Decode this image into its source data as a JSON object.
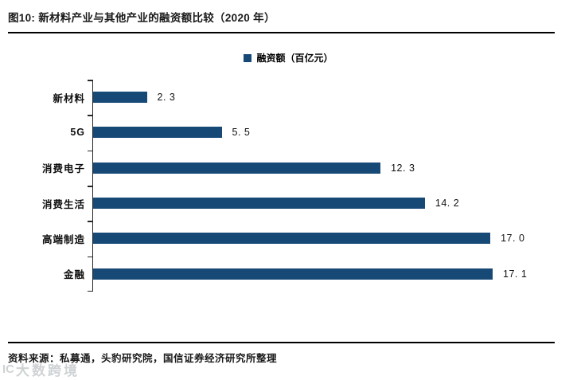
{
  "header": {
    "title": "图10: 新材料产业与其他产业的融资额比较（2020 年）"
  },
  "chart_data": {
    "type": "bar",
    "orientation": "horizontal",
    "legend": [
      "融资额（百亿元）"
    ],
    "legend_position": "top-center",
    "categories": [
      "新材料",
      "5G",
      "消费电子",
      "消费生活",
      "高端制造",
      "金融"
    ],
    "values": [
      2.3,
      5.5,
      12.3,
      14.2,
      17.0,
      17.1
    ],
    "value_labels": [
      "2. 3",
      "5. 5",
      "12. 3",
      "14. 2",
      "17. 0",
      "17. 1"
    ],
    "xlim": [
      0,
      17.1
    ],
    "grid": false,
    "bar_color": "#164976",
    "axis_color": "#262626"
  },
  "footer": {
    "source": "资料来源：私募通，头豹研究院，国信证券经济研究所整理",
    "watermark_logo": "IC",
    "watermark_text": "大数跨境"
  },
  "colors": {
    "bar": "#164976",
    "rule": "#000000",
    "title_text": "#1a1a1a"
  }
}
